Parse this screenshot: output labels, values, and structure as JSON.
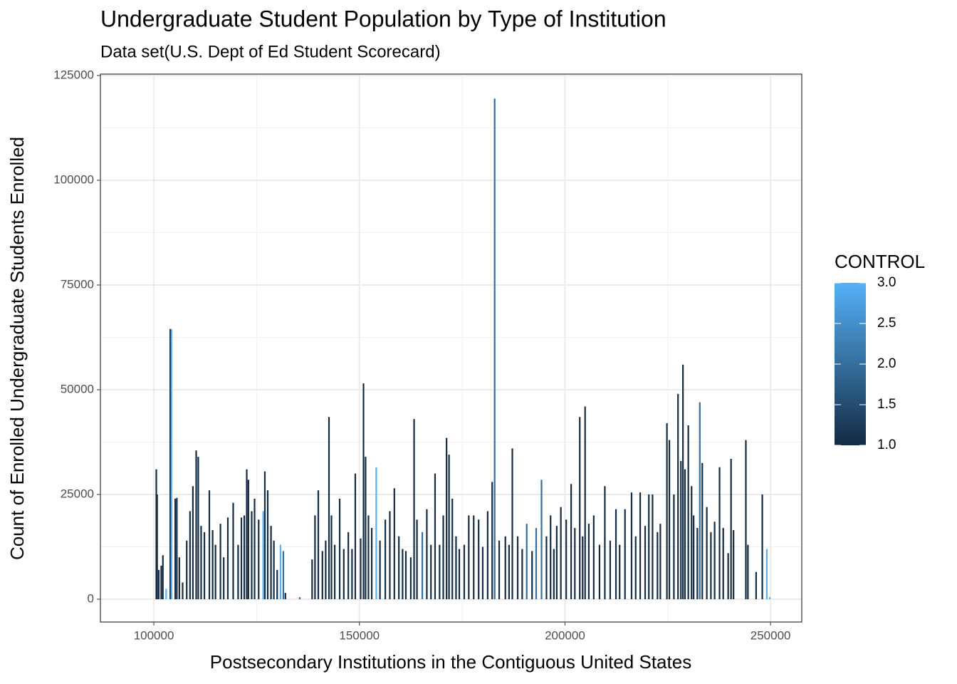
{
  "chart_data": {
    "type": "segment",
    "title": "Undergraduate Student Population by Type of Institution",
    "subtitle": "Data set(U.S. Dept of Ed Student Scorecard)",
    "xlabel": "Postsecondary Institutions in the Contiguous United States",
    "ylabel": "Count of Enrolled Undergraduate Students Enrolled",
    "xlim": [
      87000,
      257600
    ],
    "ylim": [
      -5440,
      125340
    ],
    "xticks": [
      100000,
      150000,
      200000,
      250000
    ],
    "yticks": [
      0,
      25000,
      50000,
      75000,
      100000,
      125000
    ],
    "xminor": [
      125000,
      175000,
      225000
    ],
    "yminor": [
      12500,
      37500,
      62500,
      87500,
      112500
    ],
    "grid": true,
    "x": [
      100600,
      100800,
      101200,
      101800,
      102200,
      103000,
      104000,
      104300,
      105200,
      105600,
      106200,
      107000,
      108000,
      108800,
      109500,
      110300,
      110800,
      111500,
      112300,
      113500,
      114300,
      115000,
      116200,
      117000,
      118000,
      119300,
      120500,
      121300,
      122000,
      122600,
      123000,
      123800,
      124500,
      125500,
      126600,
      127000,
      127700,
      128500,
      129200,
      130000,
      130800,
      131500,
      132000,
      135500,
      138500,
      139200,
      140000,
      141000,
      141800,
      142600,
      143200,
      144000,
      145200,
      146200,
      147300,
      148200,
      149000,
      150300,
      151000,
      151500,
      152200,
      153000,
      154100,
      155000,
      156300,
      157400,
      158500,
      159600,
      160500,
      161300,
      162500,
      163300,
      164000,
      165300,
      166400,
      167400,
      168400,
      169500,
      170400,
      171200,
      171800,
      172600,
      173500,
      174300,
      175500,
      176600,
      177800,
      179000,
      180000,
      181200,
      182300,
      182900,
      184000,
      185500,
      186400,
      187200,
      188500,
      189600,
      190700,
      192000,
      193000,
      194300,
      195500,
      196500,
      197300,
      198000,
      199000,
      200300,
      201500,
      202400,
      203600,
      204300,
      204900,
      205800,
      207000,
      208400,
      209700,
      211000,
      212400,
      213300,
      214600,
      216200,
      217200,
      218300,
      219500,
      220400,
      221300,
      222500,
      223200,
      224800,
      225400,
      226500,
      227500,
      228200,
      228700,
      229200,
      230000,
      230800,
      231300,
      232200,
      232800,
      233400,
      234500,
      235500,
      236400,
      237600,
      238500,
      239700,
      240400,
      241000,
      244000,
      244500,
      246500,
      248000,
      249100,
      249800
    ],
    "values": [
      31000,
      25000,
      7000,
      8000,
      10500,
      2500,
      64500,
      64500,
      24000,
      24200,
      10000,
      4000,
      14000,
      21000,
      27000,
      35500,
      34000,
      17500,
      16000,
      26000,
      16500,
      13000,
      18000,
      10000,
      19500,
      23000,
      13000,
      19500,
      20000,
      31000,
      28500,
      21000,
      24000,
      19000,
      21000,
      30500,
      26000,
      17500,
      14000,
      7000,
      13000,
      11500,
      1500,
      500,
      9500,
      20000,
      26000,
      11500,
      14000,
      43500,
      20000,
      13000,
      24000,
      12000,
      16000,
      12000,
      30000,
      14500,
      51500,
      34000,
      20000,
      17000,
      31500,
      14000,
      19000,
      21000,
      26500,
      15000,
      12000,
      11500,
      10000,
      43000,
      19000,
      16000,
      21500,
      13000,
      30000,
      13000,
      20000,
      38500,
      34500,
      24000,
      15000,
      12000,
      13000,
      20000,
      20000,
      19000,
      12500,
      21000,
      28000,
      119500,
      14000,
      15000,
      13000,
      36000,
      15000,
      12000,
      18000,
      11500,
      17000,
      28500,
      15000,
      20000,
      12000,
      17500,
      22000,
      19000,
      27500,
      17000,
      43500,
      15000,
      46000,
      18000,
      20000,
      13000,
      27000,
      14000,
      21500,
      13000,
      21500,
      25500,
      15000,
      25500,
      17500,
      25000,
      25000,
      16000,
      18000,
      42000,
      38000,
      25000,
      49000,
      33000,
      56000,
      31000,
      41500,
      27000,
      20000,
      17000,
      47000,
      32500,
      22000,
      16000,
      18500,
      31500,
      17000,
      11000,
      33500,
      16500,
      38000,
      13000,
      6500,
      25000,
      12000,
      500
    ],
    "control": [
      1,
      1,
      1,
      1,
      1,
      3,
      1,
      3,
      1,
      1,
      1,
      1,
      1,
      1,
      1,
      1,
      1,
      1,
      1,
      1,
      1,
      1,
      1,
      1,
      1,
      1,
      1,
      1,
      1,
      1,
      1,
      1,
      1,
      1,
      3,
      1,
      1,
      1,
      1,
      1,
      3,
      2,
      1,
      2,
      1,
      1,
      1,
      1,
      1,
      1,
      1,
      1,
      1,
      1,
      1,
      1,
      1,
      1,
      1,
      1,
      1,
      1,
      3,
      1,
      1,
      1,
      1,
      1,
      1,
      1,
      1,
      1,
      1,
      2,
      1,
      1,
      1,
      1,
      1,
      1,
      1,
      1,
      1,
      1,
      1,
      1,
      1,
      1,
      1,
      1,
      1,
      2,
      1,
      1,
      1,
      1,
      1,
      1,
      2,
      1,
      2,
      2,
      1,
      1,
      1,
      1,
      1,
      1,
      1,
      1,
      1,
      1,
      1,
      1,
      1,
      1,
      1,
      1,
      1,
      1,
      1,
      1,
      1,
      1,
      1,
      1,
      1,
      1,
      1,
      1,
      1,
      1,
      1,
      1,
      1,
      1,
      1,
      1,
      1,
      1,
      2,
      1,
      1,
      1,
      1,
      1,
      1,
      1,
      1,
      1,
      1,
      1,
      1,
      1,
      3,
      3
    ],
    "legend": {
      "title": "CONTROL",
      "low": "#132B43",
      "high": "#56B1F7",
      "range": [
        1,
        3
      ],
      "ticks": [
        {
          "value": 1,
          "label": "1.0"
        },
        {
          "value": 1.5,
          "label": "1.5"
        },
        {
          "value": 2,
          "label": "2.0"
        },
        {
          "value": 2.5,
          "label": "2.5"
        },
        {
          "value": 3,
          "label": "3.0"
        }
      ]
    }
  }
}
